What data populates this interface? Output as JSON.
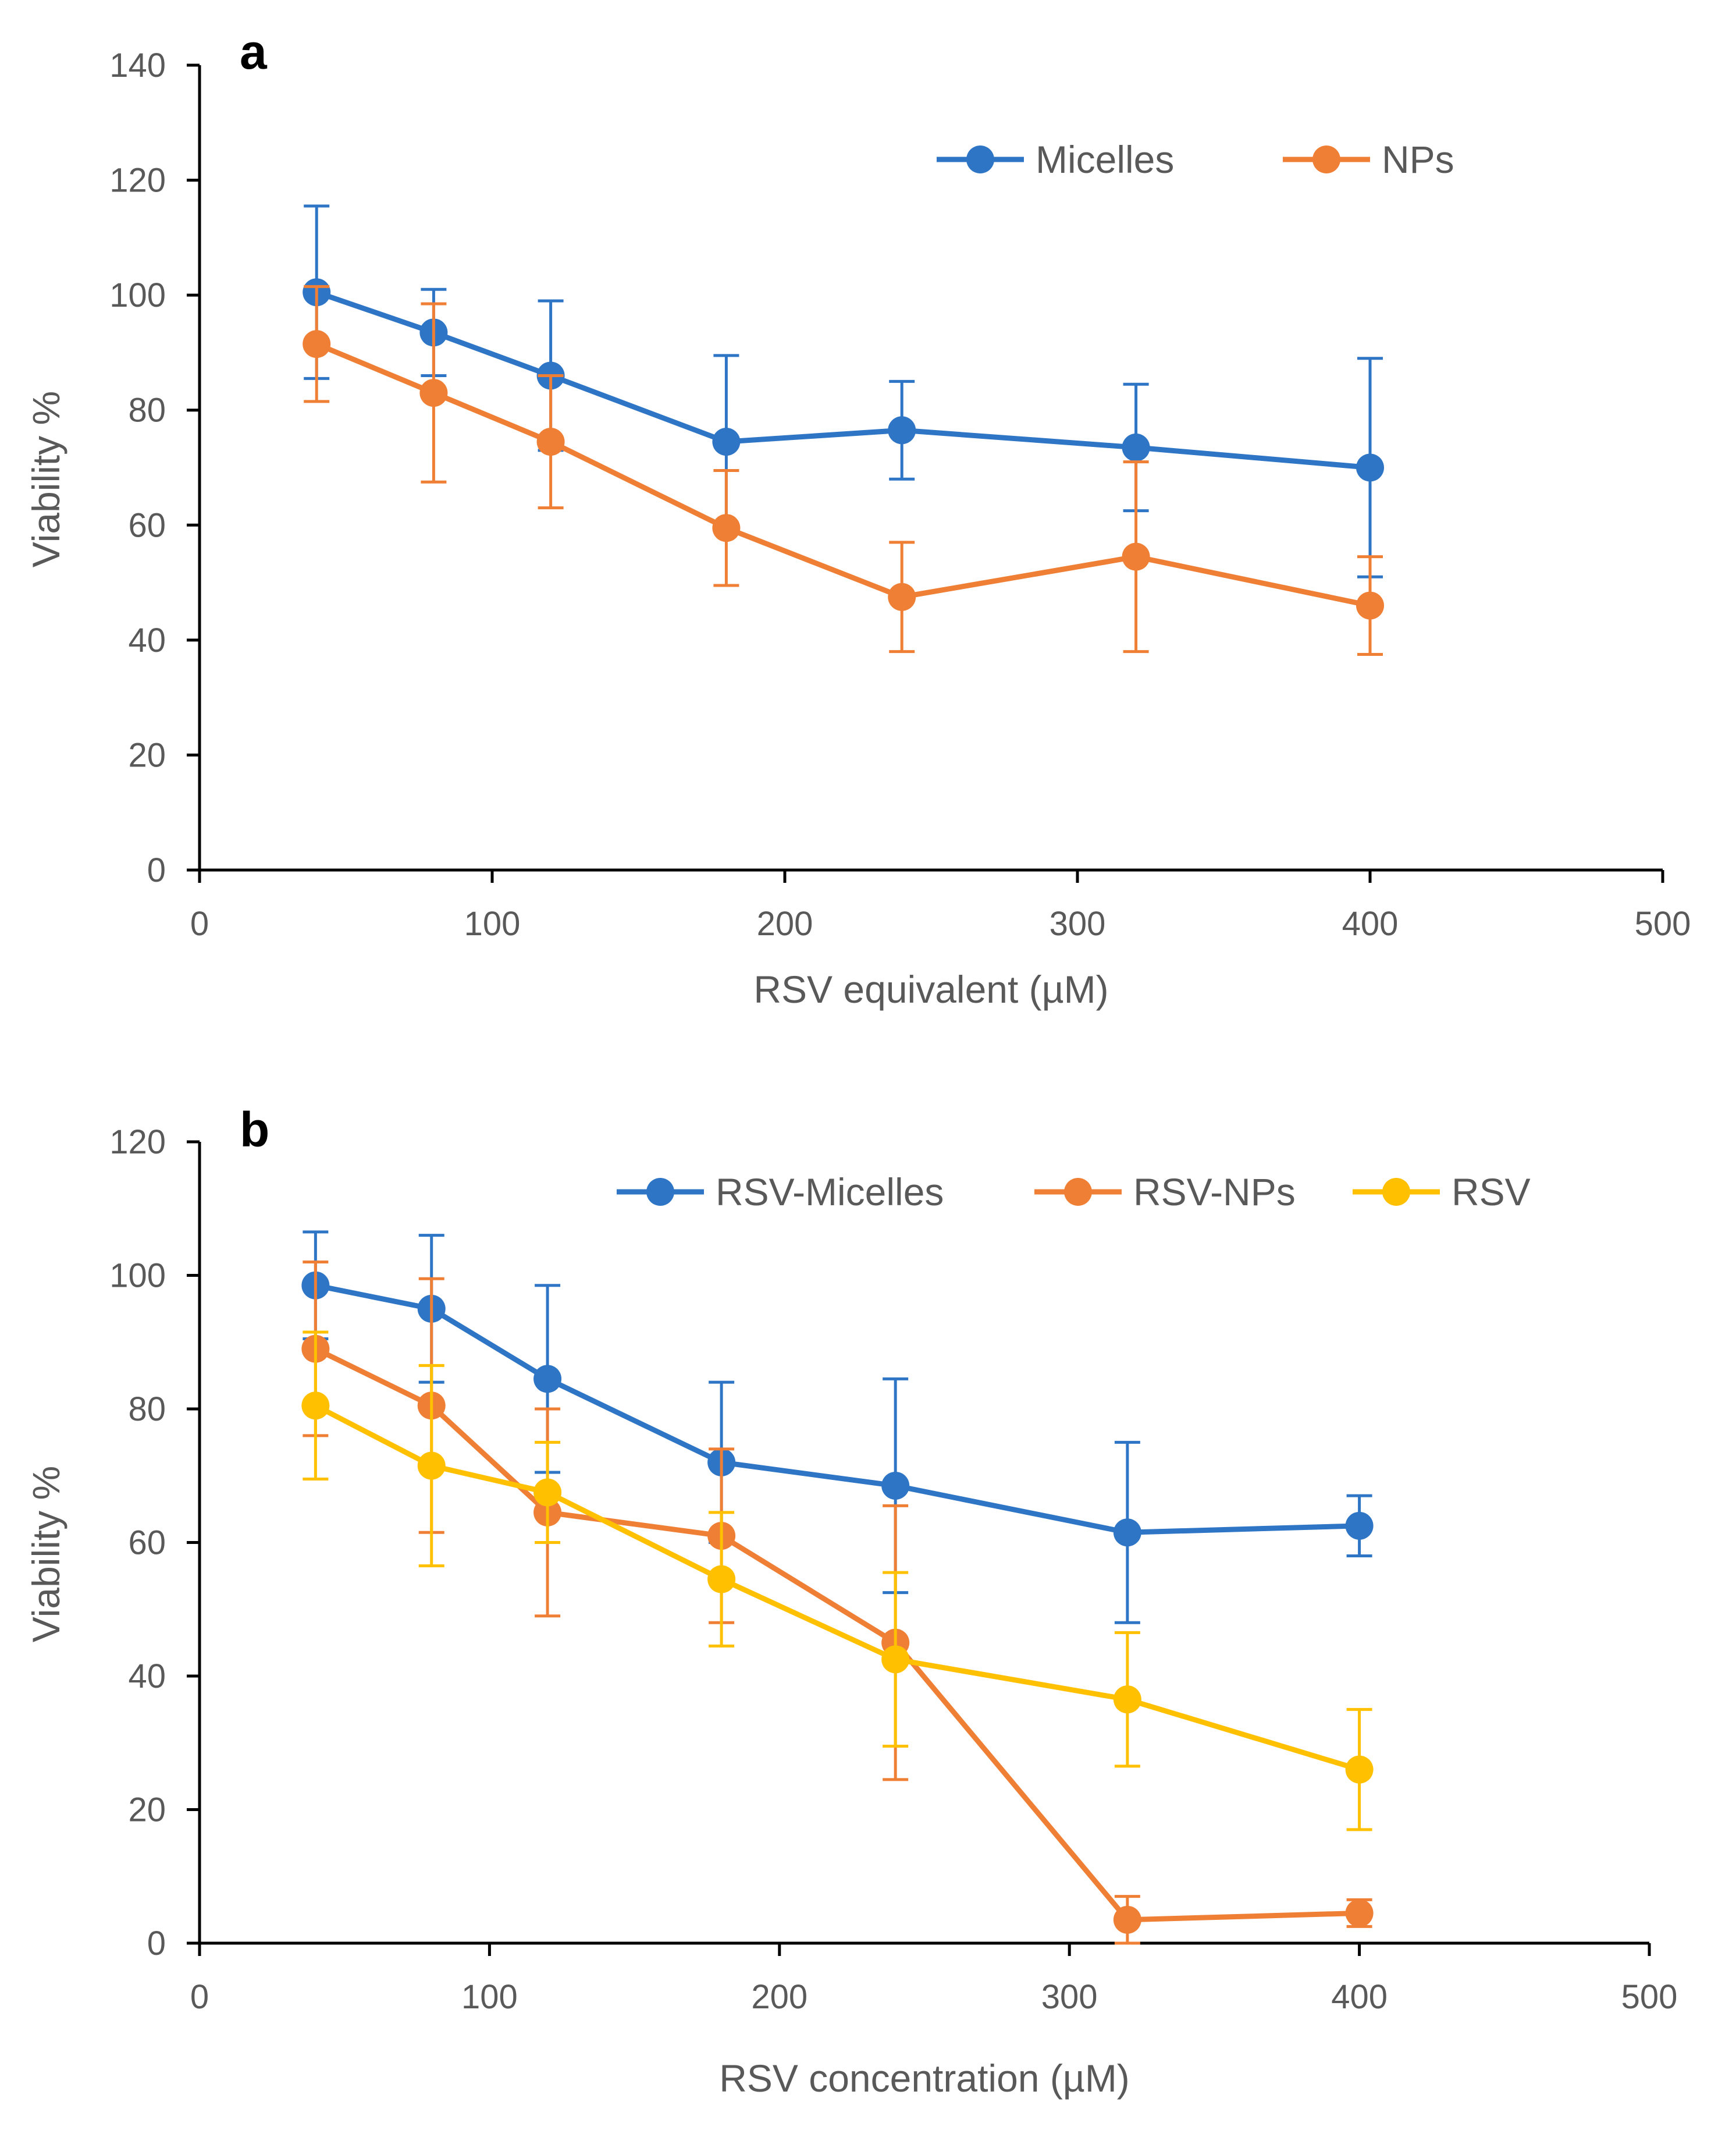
{
  "chart_data": [
    {
      "type": "line",
      "panel_label": "a",
      "title": "",
      "xlabel": "RSV equivalent  (µM)",
      "ylabel": "Viability %",
      "xlim": [
        0,
        500
      ],
      "ylim": [
        0,
        140
      ],
      "xticks": [
        0,
        100,
        200,
        300,
        400,
        500
      ],
      "yticks": [
        0,
        20,
        40,
        60,
        80,
        100,
        120,
        140
      ],
      "grid": false,
      "legend_position": "top-right",
      "x": [
        40,
        80,
        120,
        180,
        240,
        320,
        400
      ],
      "series": [
        {
          "name": "Micelles",
          "color": "#2E75C6",
          "values": [
            100.5,
            93.5,
            86,
            74.5,
            76.5,
            73.5,
            70
          ],
          "errors": [
            15,
            7.5,
            13,
            15,
            8.5,
            11,
            19
          ]
        },
        {
          "name": "NPs",
          "color": "#F07F36",
          "values": [
            91.5,
            83,
            74.5,
            59.5,
            47.5,
            54.5,
            46
          ],
          "errors": [
            10,
            15.5,
            11.5,
            10,
            9.5,
            16.5,
            8.5
          ]
        }
      ]
    },
    {
      "type": "line",
      "panel_label": "b",
      "title": "",
      "xlabel": "RSV concentration (µM)",
      "ylabel": "Viability %",
      "xlim": [
        0,
        500
      ],
      "ylim": [
        0,
        120
      ],
      "xticks": [
        0,
        100,
        200,
        300,
        400,
        500
      ],
      "yticks": [
        0,
        20,
        40,
        60,
        80,
        100,
        120
      ],
      "grid": false,
      "legend_position": "top",
      "x": [
        40,
        80,
        120,
        180,
        240,
        320,
        400
      ],
      "series": [
        {
          "name": "RSV-Micelles",
          "color": "#2E75C6",
          "values": [
            98.5,
            95,
            84.5,
            72,
            68.5,
            61.5,
            62.5
          ],
          "errors": [
            8,
            11,
            14,
            12,
            16,
            13.5,
            4.5
          ]
        },
        {
          "name": "RSV-NPs",
          "color": "#F07F36",
          "values": [
            89,
            80.5,
            64.5,
            61,
            45,
            3.5,
            4.5
          ],
          "errors": [
            13,
            19,
            15.5,
            13,
            20.5,
            3.5,
            2
          ]
        },
        {
          "name": "RSV",
          "color": "#FFC000",
          "values": [
            80.5,
            71.5,
            67.5,
            54.5,
            42.5,
            36.5,
            26
          ],
          "errors": [
            11,
            15,
            7.5,
            10,
            13,
            10,
            9
          ]
        }
      ]
    }
  ]
}
